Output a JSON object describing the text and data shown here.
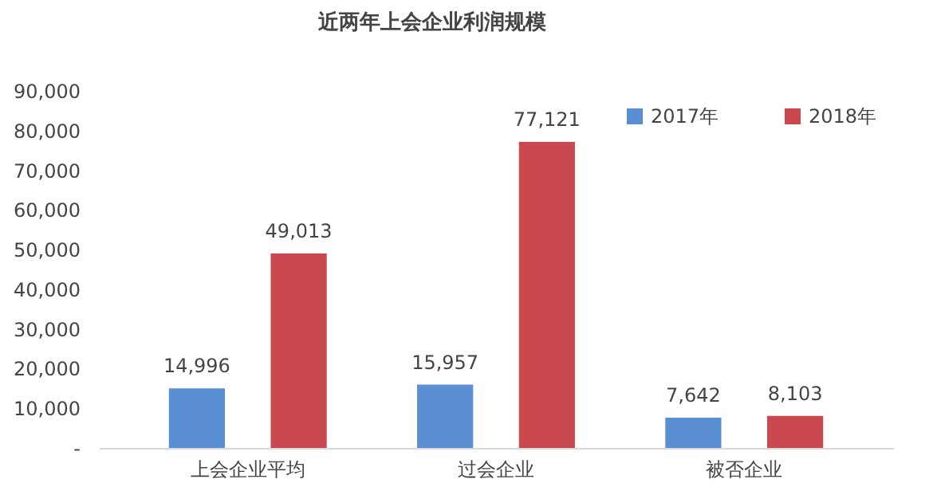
{
  "chart_data": {
    "type": "bar",
    "title": "近两年上会企业利润规模",
    "categories": [
      "上会企业平均",
      "过会企业",
      "被否企业"
    ],
    "series": [
      {
        "name": "2017年",
        "color": "#5b8fd3",
        "values": [
          14996,
          15957,
          7642
        ],
        "value_labels": [
          "14,996",
          "15,957",
          "7,642"
        ]
      },
      {
        "name": "2018年",
        "color": "#c9494e",
        "values": [
          49013,
          77121,
          8103
        ],
        "value_labels": [
          "49,013",
          "77,121",
          "8,103"
        ]
      }
    ],
    "ylim": [
      0,
      90000
    ],
    "yticks": [
      {
        "value": 0,
        "label": "-"
      },
      {
        "value": 10000,
        "label": "10,000"
      },
      {
        "value": 20000,
        "label": "20,000"
      },
      {
        "value": 30000,
        "label": "30,000"
      },
      {
        "value": 40000,
        "label": "40,000"
      },
      {
        "value": 50000,
        "label": "50,000"
      },
      {
        "value": 60000,
        "label": "60,000"
      },
      {
        "value": 70000,
        "label": "70,000"
      },
      {
        "value": 80000,
        "label": "80,000"
      },
      {
        "value": 90000,
        "label": "90,000"
      }
    ],
    "legend": "top right"
  }
}
